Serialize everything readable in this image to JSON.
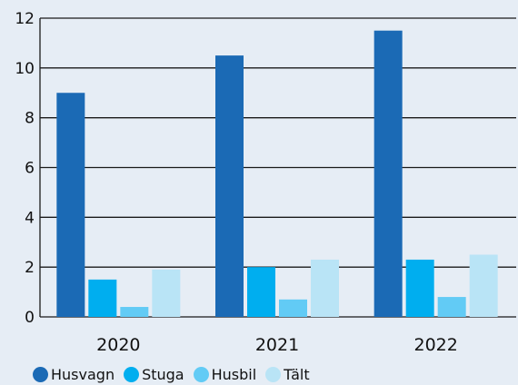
{
  "chart_data": {
    "type": "bar",
    "categories": [
      "2020",
      "2021",
      "2022"
    ],
    "series": [
      {
        "name": "Husvagn",
        "values": [
          9,
          10.5,
          11.5
        ],
        "color": "#1b6ab5"
      },
      {
        "name": "Stuga",
        "values": [
          1.5,
          2,
          2.3
        ],
        "color": "#00aeef"
      },
      {
        "name": "Husbil",
        "values": [
          0.4,
          0.7,
          0.8
        ],
        "color": "#62cbf5"
      },
      {
        "name": "Tält",
        "values": [
          1.9,
          2.3,
          2.5
        ],
        "color": "#b9e4f6"
      }
    ],
    "ylim": [
      0,
      12
    ],
    "yticks": [
      "0",
      "2",
      "4",
      "6",
      "8",
      "10",
      "12"
    ],
    "title": "",
    "xlabel": "",
    "ylabel": "",
    "grid": true,
    "legend_position": "bottom-left"
  }
}
